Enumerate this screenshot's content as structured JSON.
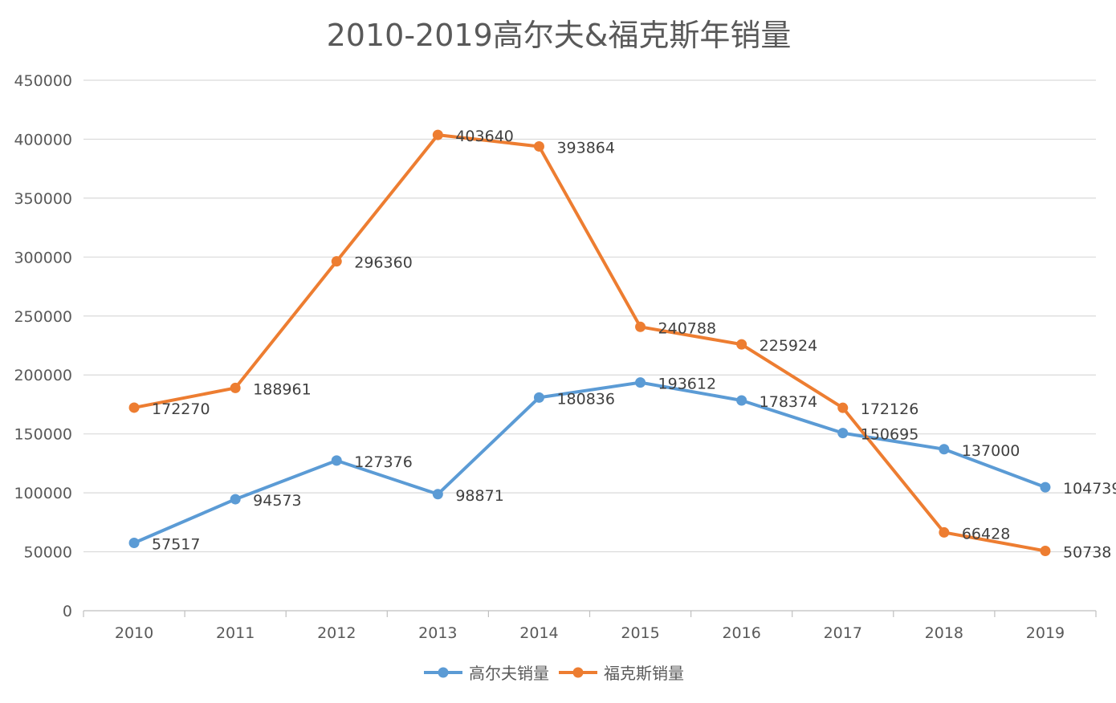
{
  "chart_data": {
    "type": "line",
    "title": "2010-2019高尔夫&福克斯年销量",
    "xlabel": "",
    "ylabel": "",
    "categories": [
      "2010",
      "2011",
      "2012",
      "2013",
      "2014",
      "2015",
      "2016",
      "2017",
      "2018",
      "2019"
    ],
    "ylim": [
      0,
      450000
    ],
    "yticks": [
      0,
      50000,
      100000,
      150000,
      200000,
      250000,
      300000,
      350000,
      400000,
      450000
    ],
    "grid": true,
    "legend": "bottom",
    "series": [
      {
        "name": "高尔夫销量",
        "color": "#5B9BD5",
        "values": [
          57517,
          94573,
          127376,
          98871,
          180836,
          193612,
          178374,
          150695,
          137000,
          104739
        ]
      },
      {
        "name": "福克斯销量",
        "color": "#ED7D31",
        "values": [
          172270,
          188961,
          296360,
          403640,
          393864,
          240788,
          225924,
          172126,
          66428,
          50738
        ]
      }
    ]
  }
}
